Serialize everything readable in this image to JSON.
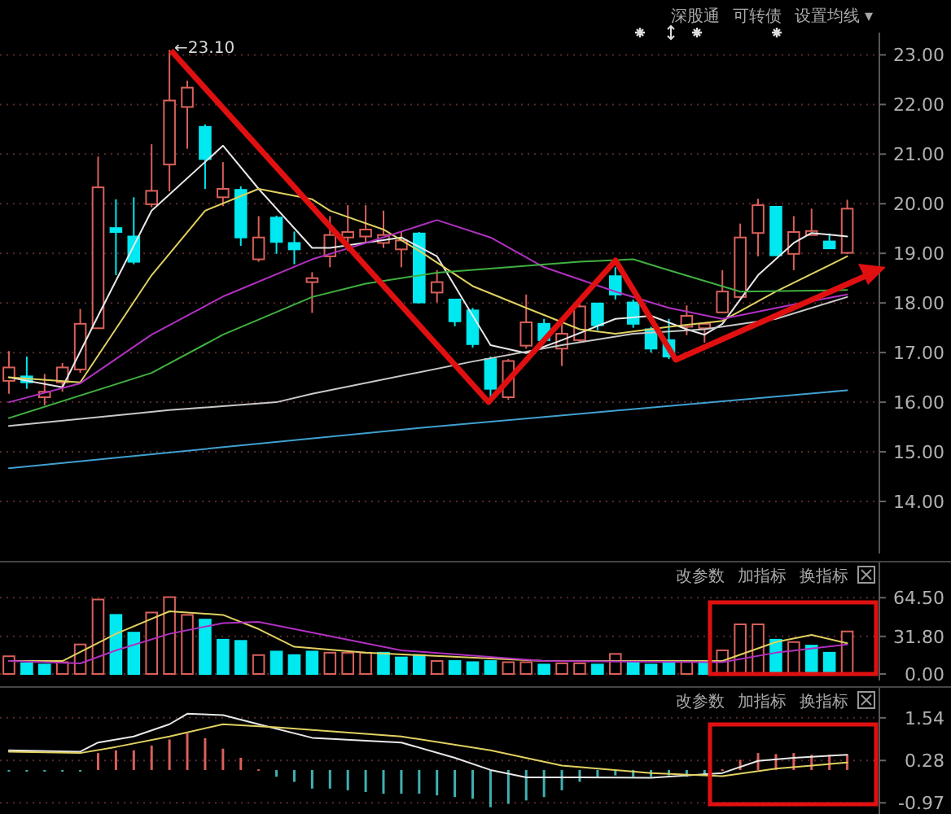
{
  "chart_data": [
    {
      "type": "candlestick",
      "categories": [
        null,
        null,
        null,
        null,
        null,
        null,
        null,
        null,
        null,
        null,
        null,
        null,
        null,
        null,
        null,
        null,
        null,
        null,
        null,
        null,
        null,
        null,
        null,
        null,
        null,
        null,
        null,
        null,
        null,
        null,
        null,
        null,
        null,
        null,
        null,
        null,
        null,
        null,
        null,
        null,
        null,
        null,
        null,
        null,
        null,
        null,
        null,
        null
      ],
      "ohlc": [
        [
          16.43,
          17.03,
          16.17,
          16.7
        ],
        [
          16.52,
          16.92,
          16.27,
          16.4
        ],
        [
          16.1,
          16.57,
          15.94,
          16.21
        ],
        [
          16.4,
          16.79,
          16.21,
          16.7
        ],
        [
          16.66,
          17.88,
          16.59,
          17.58
        ],
        [
          17.49,
          20.95,
          17.48,
          20.33
        ],
        [
          19.51,
          20.09,
          18.56,
          19.43
        ],
        [
          19.34,
          20.13,
          18.78,
          18.83
        ],
        [
          19.99,
          21.2,
          19.93,
          20.26
        ],
        [
          20.79,
          23.1,
          20.25,
          22.08
        ],
        [
          21.95,
          22.48,
          21.11,
          22.34
        ],
        [
          21.55,
          21.6,
          20.3,
          20.9
        ],
        [
          20.13,
          20.84,
          19.95,
          20.3
        ],
        [
          20.28,
          20.35,
          19.15,
          19.32
        ],
        [
          18.88,
          19.75,
          18.83,
          19.32
        ],
        [
          19.72,
          19.76,
          18.99,
          19.23
        ],
        [
          19.21,
          19.44,
          18.78,
          19.08
        ],
        [
          18.42,
          18.62,
          17.8,
          18.5
        ],
        [
          18.94,
          19.75,
          18.72,
          19.37
        ],
        [
          19.32,
          19.97,
          19.05,
          19.43
        ],
        [
          19.34,
          19.97,
          19.21,
          19.48
        ],
        [
          19.21,
          19.86,
          19.11,
          19.37
        ],
        [
          19.08,
          19.43,
          18.72,
          19.26
        ],
        [
          19.4,
          19.43,
          17.99,
          18.01
        ],
        [
          18.21,
          18.66,
          18.01,
          18.42
        ],
        [
          18.07,
          18.07,
          17.53,
          17.63
        ],
        [
          17.85,
          17.9,
          17.1,
          17.17
        ],
        [
          16.87,
          16.92,
          16.05,
          16.27
        ],
        [
          16.1,
          16.87,
          16.05,
          16.83
        ],
        [
          17.14,
          18.17,
          17.08,
          17.61
        ],
        [
          17.58,
          17.68,
          17.2,
          17.25
        ],
        [
          17.08,
          17.58,
          16.73,
          17.38
        ],
        [
          17.25,
          17.97,
          17.2,
          17.93
        ],
        [
          17.99,
          17.99,
          17.45,
          17.55
        ],
        [
          18.54,
          18.72,
          18.07,
          18.17
        ],
        [
          18.01,
          18.07,
          17.5,
          17.58
        ],
        [
          17.47,
          17.52,
          17.0,
          17.08
        ],
        [
          17.25,
          17.68,
          16.87,
          16.92
        ],
        [
          17.52,
          17.95,
          17.35,
          17.74
        ],
        [
          17.49,
          17.58,
          17.2,
          17.58
        ],
        [
          17.81,
          18.66,
          17.8,
          18.23
        ],
        [
          18.12,
          19.6,
          18.1,
          19.32
        ],
        [
          19.41,
          20.1,
          18.94,
          19.97
        ],
        [
          19.94,
          19.94,
          18.96,
          18.96
        ],
        [
          18.99,
          19.75,
          18.66,
          19.43
        ],
        [
          19.37,
          19.9,
          19.37,
          19.45
        ],
        [
          19.24,
          19.4,
          19.1,
          19.1
        ],
        [
          19.01,
          20.08,
          18.99,
          19.9
        ]
      ],
      "series": [
        {
          "type": "line",
          "color": "#e8e8e8",
          "values": [
            16.5,
            null,
            null,
            16.3,
            null,
            17.74,
            null,
            null,
            19.86,
            null,
            null,
            null,
            21.17,
            null,
            20.3,
            null,
            null,
            19.11,
            19.11,
            null,
            null,
            null,
            19.32,
            null,
            18.94,
            null,
            null,
            17.15,
            null,
            16.99,
            null,
            17.25,
            null,
            null,
            17.68,
            null,
            17.74,
            null,
            17.47,
            17.36,
            17.58,
            null,
            18.56,
            null,
            19.21,
            19.41,
            null,
            19.34
          ]
        },
        {
          "type": "line",
          "color": "#e0d060",
          "values": [
            16.5,
            null,
            null,
            null,
            16.4,
            null,
            null,
            null,
            18.56,
            null,
            null,
            19.86,
            null,
            null,
            20.3,
            null,
            null,
            20.09,
            19.86,
            null,
            null,
            19.48,
            null,
            19.05,
            null,
            null,
            18.34,
            null,
            null,
            17.9,
            null,
            null,
            17.47,
            null,
            17.38,
            null,
            null,
            17.52,
            null,
            null,
            17.64,
            null,
            null,
            18.23,
            null,
            null,
            null,
            18.94
          ]
        },
        {
          "type": "line",
          "color": "#b030c0",
          "values": [
            16.0,
            null,
            null,
            null,
            16.38,
            null,
            null,
            null,
            17.36,
            null,
            null,
            null,
            18.13,
            null,
            null,
            null,
            null,
            18.88,
            18.99,
            null,
            19.21,
            null,
            null,
            null,
            19.67,
            null,
            null,
            19.32,
            null,
            null,
            18.72,
            null,
            null,
            null,
            18.23,
            null,
            null,
            17.9,
            null,
            null,
            17.68,
            null,
            null,
            null,
            17.97,
            null,
            null,
            18.17
          ]
        },
        {
          "type": "line",
          "color": "#40b040",
          "values": [
            15.68,
            null,
            null,
            null,
            null,
            null,
            null,
            null,
            16.59,
            null,
            null,
            null,
            17.36,
            null,
            null,
            null,
            null,
            18.12,
            null,
            null,
            18.39,
            null,
            null,
            null,
            18.61,
            null,
            null,
            null,
            18.72,
            null,
            null,
            null,
            18.83,
            null,
            null,
            18.88,
            null,
            18.66,
            null,
            null,
            null,
            18.23,
            null,
            null,
            null,
            null,
            null,
            18.26
          ]
        },
        {
          "type": "line",
          "color": "#c8c8c8",
          "values": [
            15.52,
            null,
            null,
            null,
            null,
            null,
            null,
            null,
            null,
            15.84,
            null,
            null,
            null,
            null,
            null,
            16.0,
            null,
            16.17,
            null,
            null,
            null,
            null,
            null,
            null,
            null,
            null,
            16.82,
            null,
            null,
            null,
            null,
            17.15,
            null,
            null,
            null,
            17.38,
            null,
            null,
            null,
            17.47,
            null,
            null,
            null,
            17.68,
            null,
            null,
            null,
            18.12
          ]
        },
        {
          "type": "line",
          "color": "#40a0d0",
          "values": [
            14.67,
            null,
            null,
            null,
            null,
            null,
            null,
            null,
            null,
            null,
            null,
            null,
            null,
            null,
            null,
            null,
            null,
            null,
            null,
            null,
            null,
            null,
            null,
            15.48,
            null,
            null,
            null,
            null,
            null,
            null,
            null,
            null,
            null,
            null,
            null,
            null,
            null,
            null,
            null,
            null,
            null,
            null,
            null,
            null,
            null,
            null,
            null,
            16.24
          ]
        }
      ],
      "ylim": [
        12.95,
        23.45
      ],
      "yticks": [
        {
          "value": 14,
          "label": "14.00"
        },
        {
          "value": 15,
          "label": "15.00"
        },
        {
          "value": 16,
          "label": "16.00"
        },
        {
          "value": 17,
          "label": "17.00"
        },
        {
          "value": 18,
          "label": "18.00"
        },
        {
          "value": 19,
          "label": "19.00"
        },
        {
          "value": 20,
          "label": "20.00"
        },
        {
          "value": 21,
          "label": "21.00"
        },
        {
          "value": 22,
          "label": "22.00"
        },
        {
          "value": 23,
          "label": "23.00"
        }
      ],
      "grid": "y",
      "tick_labels": "y",
      "annotations": [
        "深股通",
        "可转债",
        "设置均线 ▾",
        "←23.10"
      ]
    },
    {
      "type": "bar",
      "categories": [
        null,
        null,
        null,
        null,
        null,
        null,
        null,
        null,
        null,
        null,
        null,
        null,
        null,
        null,
        null,
        null,
        null,
        null,
        null,
        null,
        null,
        null,
        null,
        null,
        null,
        null,
        null,
        null,
        null,
        null,
        null,
        null,
        null,
        null,
        null,
        null,
        null,
        null,
        null,
        null,
        null,
        null,
        null,
        null,
        null,
        null,
        null,
        null
      ],
      "values": [
        15,
        9,
        8,
        10,
        25,
        63,
        50,
        35,
        52,
        65,
        50,
        46,
        29,
        28,
        16,
        19,
        16,
        19,
        18,
        18,
        18,
        18,
        14,
        16,
        11,
        11,
        10,
        11,
        10,
        10,
        8,
        9,
        9,
        8,
        17,
        10,
        8,
        10,
        11,
        10,
        20,
        42,
        42,
        29,
        27,
        24,
        18,
        36
      ],
      "colors": [
        "#d9605a",
        "#00e8f0",
        "#00e8f0",
        "#d9605a",
        "#d9605a",
        "#d9605a",
        "#00e8f0",
        "#00e8f0",
        "#d9605a",
        "#d9605a",
        "#d9605a",
        "#00e8f0",
        "#00e8f0",
        "#00e8f0",
        "#d9605a",
        "#00e8f0",
        "#00e8f0",
        "#00e8f0",
        "#d9605a",
        "#d9605a",
        "#d9605a",
        "#00e8f0",
        "#00e8f0",
        "#00e8f0",
        "#d9605a",
        "#00e8f0",
        "#00e8f0",
        "#00e8f0",
        "#d9605a",
        "#d9605a",
        "#00e8f0",
        "#d9605a",
        "#d9605a",
        "#00e8f0",
        "#d9605a",
        "#00e8f0",
        "#00e8f0",
        "#00e8f0",
        "#d9605a",
        "#00e8f0",
        "#d9605a",
        "#d9605a",
        "#d9605a",
        "#00e8f0",
        "#d9605a",
        "#00e8f0",
        "#00e8f0",
        "#d9605a"
      ],
      "series": [
        {
          "type": "line",
          "color": "#e0d060",
          "values": [
            11,
            null,
            null,
            11,
            null,
            null,
            34,
            null,
            null,
            53,
            null,
            null,
            50,
            null,
            38,
            null,
            23,
            null,
            null,
            null,
            18,
            null,
            null,
            null,
            null,
            null,
            null,
            null,
            null,
            null,
            11,
            null,
            null,
            null,
            null,
            null,
            null,
            null,
            null,
            null,
            11,
            null,
            null,
            27,
            null,
            33,
            null,
            26
          ]
        },
        {
          "type": "line",
          "color": "#b030c0",
          "values": [
            11,
            null,
            null,
            null,
            9,
            null,
            20,
            null,
            null,
            34,
            null,
            null,
            43,
            null,
            44,
            null,
            null,
            null,
            32,
            null,
            null,
            null,
            20,
            null,
            null,
            null,
            null,
            null,
            null,
            null,
            11,
            null,
            null,
            null,
            null,
            null,
            null,
            null,
            null,
            null,
            10,
            null,
            null,
            18,
            null,
            null,
            null,
            25
          ]
        }
      ],
      "ylim": [
        -5.5,
        95
      ],
      "yticks": [
        {
          "value": 0,
          "label": "0.00"
        },
        {
          "value": 31.8,
          "label": "31.80"
        },
        {
          "value": 64.5,
          "label": "64.50"
        }
      ],
      "grid": "y",
      "tick_labels": "y",
      "annotations": [
        "改参数",
        "加指标",
        "换指标"
      ]
    },
    {
      "type": "bar",
      "categories": [
        null,
        null,
        null,
        null,
        null,
        null,
        null,
        null,
        null,
        null,
        null,
        null,
        null,
        null,
        null,
        null,
        null,
        null,
        null,
        null,
        null,
        null,
        null,
        null,
        null,
        null,
        null,
        null,
        null,
        null,
        null,
        null,
        null,
        null,
        null,
        null,
        null,
        null,
        null,
        null,
        null,
        null,
        null,
        null,
        null,
        null,
        null,
        null
      ],
      "values": [
        -0.02,
        -0.02,
        -0.02,
        -0.02,
        -0.02,
        0.5,
        0.58,
        0.58,
        0.72,
        0.9,
        1.08,
        0.94,
        0.63,
        0.36,
        0.02,
        -0.2,
        -0.35,
        -0.55,
        -0.55,
        -0.6,
        -0.65,
        -0.7,
        -0.7,
        -0.7,
        -0.75,
        -0.8,
        -0.85,
        -1.1,
        -1.0,
        -0.9,
        -0.8,
        -0.6,
        -0.35,
        -0.2,
        -0.16,
        -0.2,
        -0.2,
        -0.16,
        -0.2,
        -0.16,
        0.02,
        0.3,
        0.5,
        0.47,
        0.5,
        0.45,
        0.45,
        0.45
      ],
      "colors": [
        "#40b0b0",
        "#40b0b0",
        "#40b0b0",
        "#40b0b0",
        "#40b0b0",
        "#d9605a",
        "#d9605a",
        "#d9605a",
        "#d9605a",
        "#d9605a",
        "#d9605a",
        "#d9605a",
        "#d9605a",
        "#d9605a",
        "#d9605a",
        "#40b0b0",
        "#40b0b0",
        "#40b0b0",
        "#40b0b0",
        "#40b0b0",
        "#40b0b0",
        "#40b0b0",
        "#40b0b0",
        "#40b0b0",
        "#40b0b0",
        "#40b0b0",
        "#40b0b0",
        "#40b0b0",
        "#40b0b0",
        "#40b0b0",
        "#40b0b0",
        "#40b0b0",
        "#40b0b0",
        "#40b0b0",
        "#40b0b0",
        "#40b0b0",
        "#40b0b0",
        "#40b0b0",
        "#40b0b0",
        "#40b0b0",
        "#d9605a",
        "#d9605a",
        "#d9605a",
        "#d9605a",
        "#d9605a",
        "#d9605a",
        "#d9605a",
        "#d9605a"
      ],
      "series": [
        {
          "type": "line",
          "color": "#e8e8e8",
          "values": [
            0.58,
            null,
            null,
            null,
            0.54,
            0.81,
            null,
            0.99,
            null,
            1.35,
            1.66,
            null,
            1.62,
            null,
            1.35,
            null,
            null,
            0.95,
            null,
            null,
            null,
            null,
            0.81,
            null,
            null,
            0.36,
            null,
            0.0,
            null,
            -0.22,
            null,
            null,
            -0.22,
            null,
            null,
            null,
            -0.23,
            null,
            null,
            null,
            -0.09,
            null,
            0.27,
            null,
            0.36,
            null,
            null,
            0.45
          ]
        },
        {
          "type": "line",
          "color": "#e0d060",
          "values": [
            0.54,
            null,
            null,
            null,
            0.5,
            null,
            0.68,
            null,
            null,
            0.99,
            null,
            null,
            1.35,
            null,
            null,
            1.26,
            null,
            null,
            null,
            null,
            null,
            null,
            0.99,
            null,
            null,
            null,
            null,
            0.58,
            null,
            null,
            null,
            0.13,
            null,
            null,
            null,
            null,
            -0.09,
            null,
            null,
            null,
            -0.18,
            null,
            null,
            0.04,
            null,
            null,
            null,
            0.22
          ]
        }
      ],
      "ylim": [
        -1.3,
        2.45
      ],
      "yticks": [
        {
          "value": -0.97,
          "label": "-0.97"
        },
        {
          "value": 0.28,
          "label": "0.28"
        },
        {
          "value": 1.54,
          "label": "1.54"
        }
      ],
      "grid": "y",
      "tick_labels": "y",
      "annotations": [
        "改参数",
        "加指标",
        "换指标"
      ]
    }
  ]
}
